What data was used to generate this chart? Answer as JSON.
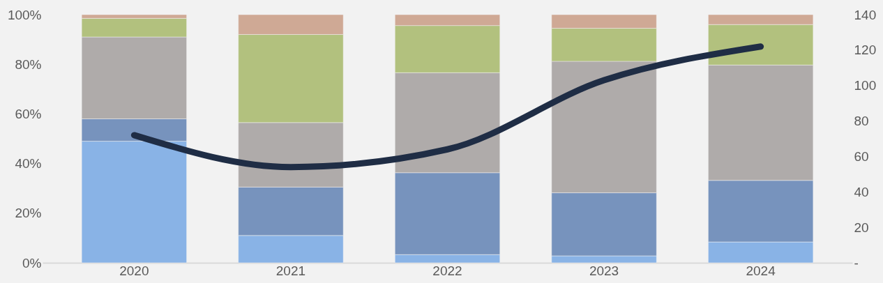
{
  "chart_data": {
    "type": "bar",
    "stacked": true,
    "categories": [
      "2020",
      "2021",
      "2022",
      "2023",
      "2024"
    ],
    "series": [
      {
        "color": "#89b3e6",
        "values": [
          49,
          11,
          3.3,
          2.8,
          8.4
        ]
      },
      {
        "color": "#7793bd",
        "values": [
          9,
          19.5,
          33,
          25.4,
          24.8
        ]
      },
      {
        "color": "#afabaa",
        "values": [
          33,
          26,
          40.3,
          53,
          46.5
        ]
      },
      {
        "color": "#b2c17e",
        "values": [
          7.5,
          35.5,
          19,
          13.3,
          16.3
        ]
      },
      {
        "color": "#cfa995",
        "values": [
          1.5,
          8,
          4.4,
          5.5,
          4
        ]
      },
      {
        "type": "line",
        "axis": "y2",
        "color": "#1f2d45",
        "values": [
          72,
          54,
          64,
          103,
          122
        ]
      }
    ],
    "ylim": [
      0,
      100
    ],
    "yticks": [
      {
        "value": 0,
        "label": "0%"
      },
      {
        "value": 20,
        "label": "20%"
      },
      {
        "value": 40,
        "label": "40%"
      },
      {
        "value": 60,
        "label": "60%"
      },
      {
        "value": 80,
        "label": "80%"
      },
      {
        "value": 100,
        "label": "100%"
      }
    ],
    "y2lim": [
      0,
      140
    ],
    "y2ticks": [
      {
        "value": 0,
        "label": "-"
      },
      20,
      40,
      60,
      80,
      100,
      120,
      140
    ],
    "grid": false,
    "line_style": "solid",
    "marker": "none"
  }
}
